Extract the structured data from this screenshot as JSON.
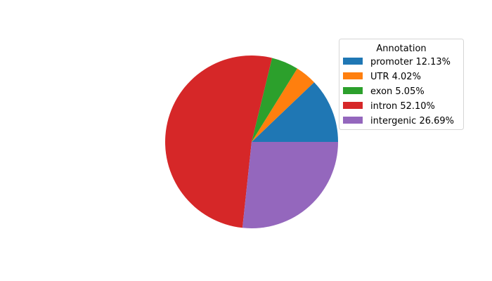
{
  "chart_data": {
    "type": "pie",
    "title": "",
    "start_angle_deg": 0,
    "direction": "counterclockwise",
    "legend": {
      "title": "Annotation",
      "placement": "upper-right"
    },
    "slices": [
      {
        "label": "promoter 12.13%",
        "value": 12.13,
        "color": "#1f77b4"
      },
      {
        "label": "UTR 4.02%",
        "value": 4.02,
        "color": "#ff7f0e"
      },
      {
        "label": "exon 5.05%",
        "value": 5.05,
        "color": "#2ca02c"
      },
      {
        "label": "intron 52.10%",
        "value": 52.1,
        "color": "#d62728"
      },
      {
        "label": "intergenic 26.69%",
        "value": 26.69,
        "color": "#9467bd"
      }
    ]
  }
}
